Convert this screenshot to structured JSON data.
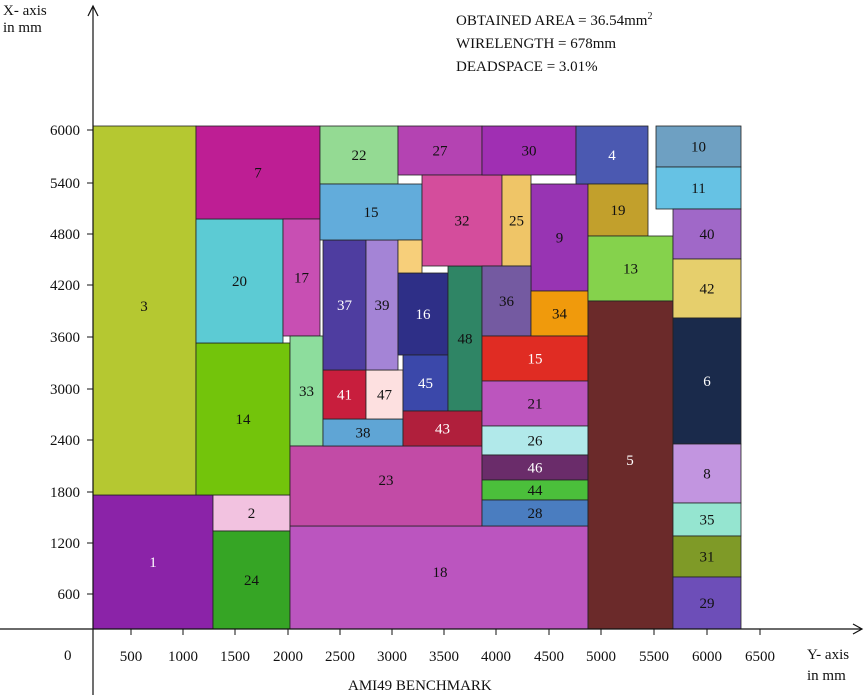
{
  "axes": {
    "vertical_label_line1": "X- axis",
    "vertical_label_line2": "in mm",
    "horizontal_label_line1": "Y- axis",
    "horizontal_label_line2": "in mm",
    "origin_label": "0",
    "x_ticks": [
      "500",
      "1000",
      "1500",
      "2000",
      "2500",
      "3000",
      "3500",
      "4000",
      "4500",
      "5000",
      "5500",
      "6000",
      "6500"
    ],
    "y_ticks": [
      "600",
      "1200",
      "1800",
      "2400",
      "3000",
      "3600",
      "4200",
      "4800",
      "5400",
      "6000"
    ],
    "benchmark_label": "AMI49 BENCHMARK"
  },
  "stats": {
    "area_label": "OBTAINED AREA = 36.54mm",
    "area_sup": "2",
    "wirelength": "WIRELENGTH = 678mm",
    "deadspace": "DEADSPACE = 3.01%"
  },
  "blocks": [
    {
      "id": "1",
      "color": "#8b23a8",
      "text": "#ffffff"
    },
    {
      "id": "2",
      "color": "#f2c2e0",
      "text": "#111111"
    },
    {
      "id": "3",
      "color": "#b5c831",
      "text": "#111111"
    },
    {
      "id": "24",
      "color": "#36a525",
      "text": "#111111"
    },
    {
      "id": "14",
      "color": "#73c40b",
      "text": "#111111"
    },
    {
      "id": "20",
      "color": "#5ccbd4",
      "text": "#111111"
    },
    {
      "id": "7",
      "color": "#be1e94",
      "text": "#111111"
    },
    {
      "id": "17",
      "color": "#c84fb3",
      "text": "#111111"
    },
    {
      "id": "33",
      "color": "#8ddd9d",
      "text": "#111111"
    },
    {
      "id": "18",
      "color": "#bb55bf",
      "text": "#111111"
    },
    {
      "id": "23",
      "color": "#c24ba6",
      "text": "#111111"
    },
    {
      "id": "38",
      "color": "#5fa5d5",
      "text": "#111111"
    },
    {
      "id": "41",
      "color": "#c81e3d",
      "text": "#ffffff"
    },
    {
      "id": "47",
      "color": "#fde0e0",
      "text": "#111111"
    },
    {
      "id": "37",
      "color": "#4e3da0",
      "text": "#ffffff"
    },
    {
      "id": "39",
      "color": "#a484d6",
      "text": "#111111"
    },
    {
      "id": "16",
      "color": "#2e2f87",
      "text": "#ffffff"
    },
    {
      "id": "45",
      "color": "#3b48aa",
      "text": "#ffffff"
    },
    {
      "id": "48",
      "color": "#2f8565",
      "text": "#111111"
    },
    {
      "id": "43",
      "color": "#b01f3c",
      "text": "#ffffff"
    },
    {
      "id": "22",
      "color": "#94da93",
      "text": "#111111"
    },
    {
      "id": "15a",
      "label": "15",
      "color": "#62acdb",
      "text": "#111111"
    },
    {
      "id": "27",
      "color": "#b443b2",
      "text": "#111111"
    },
    {
      "id": "32",
      "color": "#d44d9c",
      "text": "#111111"
    },
    {
      "id": "25",
      "color": "#efc567",
      "text": "#111111"
    },
    {
      "id": "30",
      "color": "#a02fb3",
      "text": "#111111"
    },
    {
      "id": "9",
      "color": "#9834b3",
      "text": "#111111"
    },
    {
      "id": "36",
      "color": "#745aa1",
      "text": "#111111"
    },
    {
      "id": "34",
      "color": "#f09a0c",
      "text": "#111111"
    },
    {
      "id": "15b",
      "label": "15",
      "color": "#e02c23",
      "text": "#ffffff"
    },
    {
      "id": "21",
      "color": "#bc55be",
      "text": "#111111"
    },
    {
      "id": "26",
      "color": "#b1e9ea",
      "text": "#111111"
    },
    {
      "id": "46",
      "color": "#6a2c6a",
      "text": "#ffffff"
    },
    {
      "id": "44",
      "color": "#4bbf3b",
      "text": "#111111"
    },
    {
      "id": "28",
      "color": "#4a7dc0",
      "text": "#111111"
    },
    {
      "id": "4",
      "color": "#4b59b1",
      "text": "#ffffff"
    },
    {
      "id": "19",
      "color": "#c2a02c",
      "text": "#111111"
    },
    {
      "id": "13",
      "color": "#85d24c",
      "text": "#111111"
    },
    {
      "id": "5",
      "color": "#6b2a2a",
      "text": "#ffffff"
    },
    {
      "id": "10",
      "color": "#6ea0c2",
      "text": "#111111"
    },
    {
      "id": "11",
      "color": "#66c2e4",
      "text": "#111111"
    },
    {
      "id": "40",
      "color": "#a068c8",
      "text": "#111111"
    },
    {
      "id": "42",
      "color": "#e6cf6c",
      "text": "#111111"
    },
    {
      "id": "6",
      "color": "#1a2a4b",
      "text": "#ffffff"
    },
    {
      "id": "8",
      "color": "#c295e0",
      "text": "#111111"
    },
    {
      "id": "35",
      "color": "#95e5d0",
      "text": "#111111"
    },
    {
      "id": "31",
      "color": "#7f9a27",
      "text": "#111111"
    },
    {
      "id": "29",
      "color": "#6d4eb8",
      "text": "#111111"
    },
    {
      "id": "filler",
      "label": "",
      "color": "#f7cf7a",
      "text": "#111111"
    }
  ]
}
